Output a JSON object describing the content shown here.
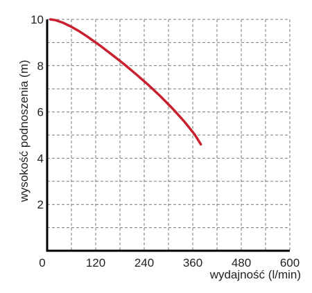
{
  "chart_data": {
    "type": "line",
    "xlabel": "wydajność (l/min)",
    "ylabel": "wysokość podnoszenia (m)",
    "xlim": [
      0,
      600
    ],
    "ylim": [
      0,
      10
    ],
    "x_ticks": [
      0,
      120,
      240,
      360,
      480,
      600
    ],
    "x_tick_labels": [
      "0",
      "120",
      "240",
      "360",
      "480",
      "600"
    ],
    "y_ticks": [
      2,
      4,
      6,
      8,
      10
    ],
    "y_tick_labels": [
      "2",
      "4",
      "6",
      "8",
      "10"
    ],
    "grid": true,
    "series": [
      {
        "color": "#c8202f",
        "x": [
          8,
          20,
          40,
          60,
          80,
          100,
          130,
          160,
          190,
          220,
          250,
          280,
          310,
          340,
          365,
          380
        ],
        "y": [
          10.0,
          9.97,
          9.85,
          9.68,
          9.48,
          9.25,
          8.88,
          8.48,
          8.07,
          7.63,
          7.17,
          6.68,
          6.15,
          5.57,
          5.02,
          4.6
        ]
      }
    ]
  }
}
